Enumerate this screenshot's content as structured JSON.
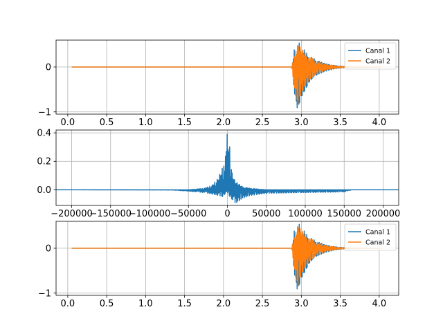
{
  "chart_data": [
    {
      "type": "line",
      "xlim": [
        -0.15,
        4.25
      ],
      "ylim": [
        -1.05,
        0.6
      ],
      "grid": true,
      "legend_placement": "top-right",
      "xticks": [
        0.0,
        0.5,
        1.0,
        1.5,
        2.0,
        2.5,
        3.0,
        3.5,
        4.0
      ],
      "xtick_labels": [
        "0.0",
        "0.5",
        "1.0",
        "1.5",
        "2.0",
        "2.5",
        "3.0",
        "3.5",
        "4.0"
      ],
      "yticks": [
        -1,
        0
      ],
      "ytick_labels": [
        "−1",
        "0"
      ],
      "colors": [
        "#1f77b4",
        "#ff7f0e"
      ],
      "series": [
        {
          "name": "Canal 1",
          "description": "audio waveform, silent until ~2.9 s then decaying burst",
          "x": [
            0.05,
            2.88,
            2.9,
            2.92,
            2.94,
            2.96,
            2.98,
            3.0,
            3.03,
            3.06,
            3.1,
            3.15,
            3.2,
            3.3,
            3.4,
            3.5,
            3.6,
            4.03
          ],
          "envelope_pos": [
            0.0,
            0.0,
            0.3,
            0.5,
            0.45,
            0.6,
            0.5,
            0.45,
            0.4,
            0.32,
            0.25,
            0.2,
            0.15,
            0.08,
            0.04,
            0.02,
            0.01,
            0.0
          ],
          "envelope_neg": [
            0.0,
            0.0,
            -0.4,
            -0.7,
            -0.9,
            -1.0,
            -0.8,
            -0.7,
            -0.6,
            -0.5,
            -0.35,
            -0.25,
            -0.18,
            -0.1,
            -0.05,
            -0.02,
            -0.01,
            0.0
          ]
        },
        {
          "name": "Canal 2",
          "description": "audio waveform, silent until ~2.9 s then decaying burst",
          "x": [
            0.05,
            2.88,
            2.9,
            2.92,
            2.94,
            2.96,
            2.98,
            3.0,
            3.03,
            3.06,
            3.1,
            3.15,
            3.2,
            3.3,
            3.4,
            3.5,
            3.6,
            4.03
          ],
          "envelope_pos": [
            0.0,
            0.0,
            0.25,
            0.45,
            0.4,
            0.55,
            0.45,
            0.4,
            0.35,
            0.3,
            0.22,
            0.18,
            0.13,
            0.07,
            0.035,
            0.015,
            0.008,
            0.0
          ],
          "envelope_neg": [
            0.0,
            0.0,
            -0.35,
            -0.6,
            -0.8,
            -0.85,
            -0.7,
            -0.6,
            -0.5,
            -0.42,
            -0.3,
            -0.22,
            -0.15,
            -0.08,
            -0.04,
            -0.015,
            -0.008,
            0.0
          ]
        }
      ]
    },
    {
      "type": "line",
      "xlim": [
        -220000,
        220000
      ],
      "ylim": [
        -0.11,
        0.42
      ],
      "grid": true,
      "xticks": [
        -200000,
        -150000,
        -100000,
        -50000,
        0,
        50000,
        100000,
        150000,
        200000
      ],
      "xtick_labels": [
        "−200000",
        "−150000",
        "−100000",
        "−50000",
        "0",
        "50000",
        "100000",
        "150000",
        "200000"
      ],
      "yticks": [
        0.0,
        0.2,
        0.4
      ],
      "ytick_labels": [
        "0.0",
        "0.2",
        "0.4"
      ],
      "colors": [
        "#1f77b4"
      ],
      "series": [
        {
          "description": "cross-correlation between channels, peak at lag ≈ 0",
          "x": [
            -220000,
            -70000,
            -50000,
            -30000,
            -20000,
            -12000,
            -6000,
            -3000,
            0,
            3000,
            6000,
            10000,
            15000,
            20000,
            30000,
            50000,
            100000,
            150000,
            160000,
            220000
          ],
          "envelope_pos": [
            0.0,
            0.0,
            0.0,
            0.01,
            0.03,
            0.08,
            0.16,
            0.28,
            0.4,
            0.3,
            0.12,
            0.06,
            0.04,
            0.02,
            0.01,
            0.0,
            0.0,
            0.0,
            0.0,
            0.0
          ],
          "envelope_neg": [
            0.0,
            -0.002,
            -0.01,
            -0.02,
            -0.03,
            -0.04,
            -0.05,
            -0.03,
            -0.02,
            -0.05,
            -0.07,
            -0.1,
            -0.08,
            -0.06,
            -0.04,
            -0.025,
            -0.02,
            -0.015,
            0.0,
            0.0
          ]
        }
      ]
    },
    {
      "type": "line",
      "xlim": [
        -0.15,
        4.25
      ],
      "ylim": [
        -1.05,
        0.6
      ],
      "grid": true,
      "legend_placement": "top-right",
      "xticks": [
        0.0,
        0.5,
        1.0,
        1.5,
        2.0,
        2.5,
        3.0,
        3.5,
        4.0
      ],
      "xtick_labels": [
        "0.0",
        "0.5",
        "1.0",
        "1.5",
        "2.0",
        "2.5",
        "3.0",
        "3.5",
        "4.0"
      ],
      "yticks": [
        -1,
        0
      ],
      "ytick_labels": [
        "−1",
        "0"
      ],
      "colors": [
        "#1f77b4",
        "#ff7f0e"
      ],
      "series": [
        {
          "name": "Canal 1",
          "description": "audio waveform (same as top), aligned",
          "x": [
            0.05,
            2.88,
            2.9,
            2.92,
            2.94,
            2.96,
            2.98,
            3.0,
            3.03,
            3.06,
            3.1,
            3.15,
            3.2,
            3.3,
            3.4,
            3.5,
            3.6,
            4.03
          ],
          "envelope_pos": [
            0.0,
            0.0,
            0.3,
            0.5,
            0.45,
            0.6,
            0.5,
            0.45,
            0.4,
            0.32,
            0.25,
            0.2,
            0.15,
            0.08,
            0.04,
            0.02,
            0.01,
            0.0
          ],
          "envelope_neg": [
            0.0,
            0.0,
            -0.4,
            -0.7,
            -0.9,
            -1.0,
            -0.8,
            -0.7,
            -0.6,
            -0.5,
            -0.35,
            -0.25,
            -0.18,
            -0.1,
            -0.05,
            -0.02,
            -0.01,
            0.0
          ]
        },
        {
          "name": "Canal 2",
          "description": "audio waveform (same as top), aligned",
          "x": [
            0.05,
            2.88,
            2.9,
            2.92,
            2.94,
            2.96,
            2.98,
            3.0,
            3.03,
            3.06,
            3.1,
            3.15,
            3.2,
            3.3,
            3.4,
            3.5,
            3.6,
            4.03
          ],
          "envelope_pos": [
            0.0,
            0.0,
            0.25,
            0.45,
            0.4,
            0.55,
            0.45,
            0.4,
            0.35,
            0.3,
            0.22,
            0.18,
            0.13,
            0.07,
            0.035,
            0.015,
            0.008,
            0.0
          ],
          "envelope_neg": [
            0.0,
            0.0,
            -0.35,
            -0.6,
            -0.8,
            -0.85,
            -0.7,
            -0.6,
            -0.5,
            -0.42,
            -0.3,
            -0.22,
            -0.15,
            -0.08,
            -0.04,
            -0.015,
            -0.008,
            0.0
          ]
        }
      ]
    }
  ]
}
